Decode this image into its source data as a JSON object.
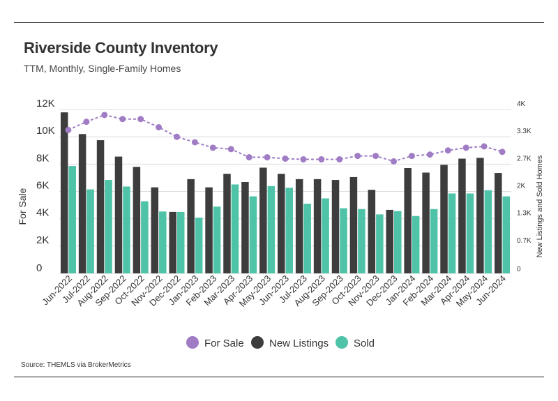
{
  "header": {
    "title": "Riverside County Inventory",
    "subtitle": "TTM, Monthly, Single-Family Homes"
  },
  "footer": {
    "source": "Source:  THEMLS via BrokerMetrics"
  },
  "colors": {
    "for_sale": "#a07cc5",
    "new_listings": "#3d3d3d",
    "sold": "#4fc3a8",
    "grid": "#dddddd",
    "text": "#333333"
  },
  "chart_data": {
    "type": "bar",
    "categories": [
      "Jun-2022",
      "Jul-2022",
      "Aug-2022",
      "Sep-2022",
      "Oct-2022",
      "Nov-2022",
      "Dec-2022",
      "Jan-2023",
      "Feb-2023",
      "Mar-2023",
      "Apr-2023",
      "May-2023",
      "Jun-2023",
      "Jul-2023",
      "Aug-2023",
      "Sep-2023",
      "Oct-2023",
      "Nov-2023",
      "Dec-2023",
      "Jan-2024",
      "Feb-2024",
      "Mar-2024",
      "Apr-2024",
      "May-2024",
      "Jun-2024"
    ],
    "ylabel": "For Sale",
    "y2label": "New Listings and Sold Homes",
    "ylim": [
      0,
      12000
    ],
    "y2lim": [
      0,
      4000
    ],
    "yticks": [
      "0",
      "2K",
      "4K",
      "6K",
      "8K",
      "10K",
      "12K"
    ],
    "y2ticks": [
      "0",
      "0.7K",
      "1.3K",
      "2K",
      "2.7K",
      "3.3K",
      "4K"
    ],
    "legend_position": "bottom",
    "grid": true,
    "series": [
      {
        "name": "For Sale",
        "type": "line",
        "axis": "left",
        "values": [
          10500,
          11100,
          11600,
          11300,
          11300,
          10700,
          10000,
          9600,
          9200,
          9100,
          8500,
          8500,
          8400,
          8350,
          8350,
          8350,
          8600,
          8600,
          8200,
          8600,
          8700,
          9000,
          9200,
          9300,
          8900
        ]
      },
      {
        "name": "New Listings",
        "type": "bar",
        "axis": "right",
        "values": [
          3930,
          3400,
          3250,
          2850,
          2600,
          2100,
          1500,
          2300,
          2100,
          2430,
          2230,
          2580,
          2430,
          2300,
          2300,
          2280,
          2350,
          2040,
          1550,
          2570,
          2460,
          2650,
          2800,
          2820,
          2450
        ]
      },
      {
        "name": "Sold",
        "type": "bar",
        "axis": "right",
        "values": [
          2620,
          2050,
          2280,
          2120,
          1760,
          1510,
          1500,
          1360,
          1630,
          2170,
          1880,
          2130,
          2090,
          1700,
          1830,
          1590,
          1570,
          1440,
          1520,
          1400,
          1570,
          1950,
          1950,
          2030,
          1880
        ]
      }
    ]
  }
}
